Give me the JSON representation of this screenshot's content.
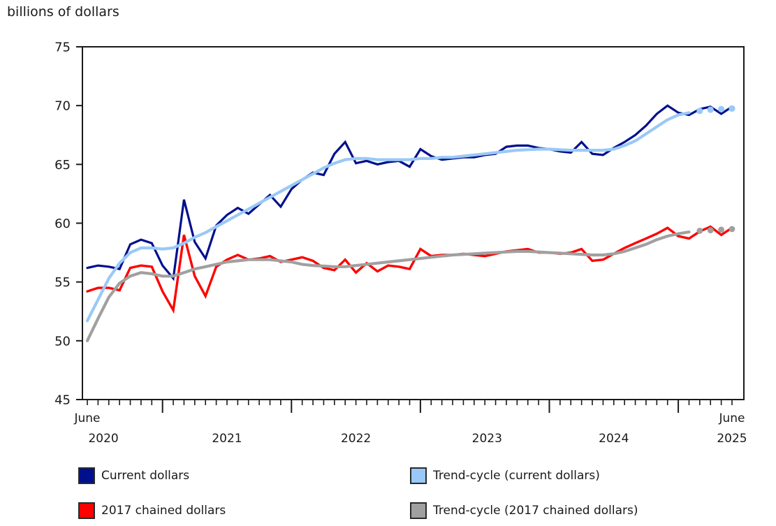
{
  "title": "billions of dollars",
  "chart_data": {
    "type": "line",
    "title": "billions of dollars",
    "axis_color": "#1a1a1a",
    "text_color": "#1a1a1a",
    "ylim": [
      45,
      75
    ],
    "yticks": [
      45,
      50,
      55,
      60,
      65,
      70,
      75
    ],
    "months": 61,
    "x_start": "June 2020",
    "x_end": "June 2025",
    "january_tick_indices": [
      7,
      19,
      31,
      43,
      55
    ],
    "x_axis_labels": [
      {
        "text": "June",
        "month_index": 0,
        "row": 0
      },
      {
        "text": "2020",
        "month_index": 1.5,
        "row": 1
      },
      {
        "text": "2021",
        "month_index": 13,
        "row": 1
      },
      {
        "text": "2022",
        "month_index": 25,
        "row": 1
      },
      {
        "text": "2023",
        "month_index": 37.2,
        "row": 1
      },
      {
        "text": "2024",
        "month_index": 49,
        "row": 1
      },
      {
        "text": "June",
        "month_index": 60,
        "row": 0
      },
      {
        "text": "2025",
        "month_index": 60,
        "row": 1
      }
    ],
    "legend_position": "bottom",
    "grid": false,
    "series": [
      {
        "name": "Current dollars",
        "color": "#000f8e",
        "width": 3.2,
        "end_dots": 0,
        "smooth": false,
        "values": [
          56.2,
          56.4,
          56.3,
          56.1,
          58.2,
          58.6,
          58.3,
          56.4,
          55.3,
          62.0,
          58.4,
          57.0,
          59.8,
          60.7,
          61.3,
          60.8,
          61.6,
          62.4,
          61.4,
          62.9,
          63.7,
          64.3,
          64.1,
          65.9,
          66.9,
          65.1,
          65.3,
          65.0,
          65.2,
          65.3,
          64.8,
          66.3,
          65.7,
          65.4,
          65.5,
          65.6,
          65.6,
          65.8,
          65.9,
          66.5,
          66.6,
          66.6,
          66.4,
          66.3,
          66.1,
          66.0,
          66.9,
          65.9,
          65.8,
          66.4,
          66.9,
          67.5,
          68.3,
          69.3,
          70.0,
          69.4,
          69.2,
          69.7,
          69.9,
          69.3,
          69.9
        ]
      },
      {
        "name": "2017 chained dollars",
        "color": "#ff0000",
        "width": 3.4,
        "end_dots": 0,
        "smooth": false,
        "values": [
          54.2,
          54.5,
          54.5,
          54.3,
          56.2,
          56.4,
          56.3,
          54.2,
          52.6,
          59.0,
          55.5,
          53.8,
          56.3,
          56.9,
          57.3,
          56.9,
          57.0,
          57.2,
          56.7,
          56.9,
          57.1,
          56.8,
          56.2,
          56.0,
          56.9,
          55.8,
          56.6,
          55.9,
          56.4,
          56.3,
          56.1,
          57.8,
          57.2,
          57.3,
          57.3,
          57.4,
          57.3,
          57.2,
          57.4,
          57.6,
          57.7,
          57.8,
          57.5,
          57.5,
          57.4,
          57.5,
          57.8,
          56.8,
          56.9,
          57.4,
          57.9,
          58.3,
          58.7,
          59.1,
          59.6,
          58.9,
          58.7,
          59.3,
          59.7,
          59.0,
          59.6
        ]
      },
      {
        "name": "Trend-cycle (current dollars)",
        "color": "#99c9f7",
        "width": 4.2,
        "end_dots": 4,
        "dot_radius": 4.6,
        "smooth": true,
        "values": [
          51.7,
          53.5,
          55.3,
          56.6,
          57.5,
          57.9,
          57.9,
          57.8,
          57.9,
          58.3,
          58.8,
          59.2,
          59.7,
          60.2,
          60.7,
          61.2,
          61.7,
          62.2,
          62.7,
          63.2,
          63.7,
          64.2,
          64.7,
          65.1,
          65.4,
          65.5,
          65.5,
          65.4,
          65.4,
          65.4,
          65.4,
          65.5,
          65.5,
          65.6,
          65.6,
          65.7,
          65.8,
          65.9,
          66.0,
          66.1,
          66.2,
          66.25,
          66.3,
          66.3,
          66.25,
          66.2,
          66.2,
          66.2,
          66.2,
          66.3,
          66.6,
          67.0,
          67.6,
          68.2,
          68.8,
          69.2,
          69.4,
          69.55,
          69.65,
          69.7,
          69.75
        ]
      },
      {
        "name": "Trend-cycle (2017 chained dollars)",
        "color": "#a0a0a0",
        "width": 4.2,
        "end_dots": 4,
        "dot_radius": 4.4,
        "smooth": true,
        "values": [
          50.0,
          51.9,
          53.7,
          54.9,
          55.5,
          55.8,
          55.7,
          55.5,
          55.5,
          55.8,
          56.1,
          56.3,
          56.5,
          56.7,
          56.8,
          56.9,
          56.9,
          56.9,
          56.8,
          56.7,
          56.5,
          56.4,
          56.35,
          56.3,
          56.3,
          56.4,
          56.5,
          56.6,
          56.7,
          56.8,
          56.9,
          57.0,
          57.1,
          57.2,
          57.3,
          57.35,
          57.4,
          57.45,
          57.5,
          57.55,
          57.6,
          57.6,
          57.55,
          57.5,
          57.45,
          57.4,
          57.35,
          57.3,
          57.3,
          57.4,
          57.6,
          57.9,
          58.2,
          58.6,
          58.9,
          59.1,
          59.25,
          59.35,
          59.4,
          59.45,
          59.5
        ]
      }
    ]
  }
}
